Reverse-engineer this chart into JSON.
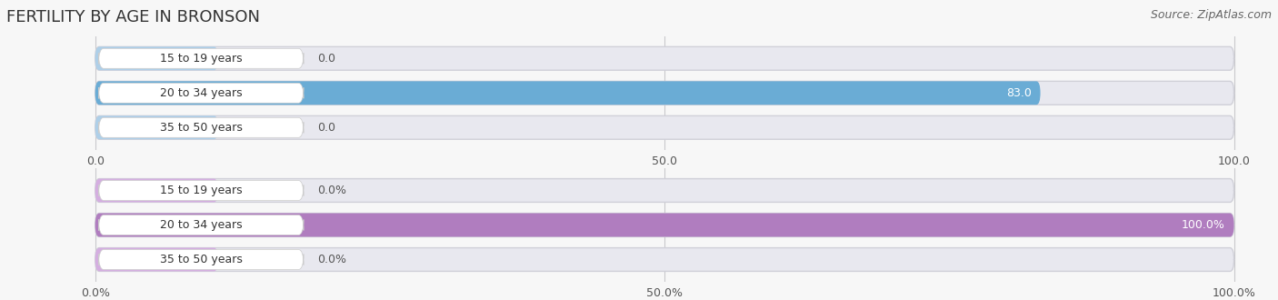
{
  "title": "FERTILITY BY AGE IN BRONSON",
  "source": "Source: ZipAtlas.com",
  "top_chart": {
    "categories": [
      "15 to 19 years",
      "20 to 34 years",
      "35 to 50 years"
    ],
    "values": [
      0.0,
      83.0,
      0.0
    ],
    "xlim": [
      0,
      100
    ],
    "xticks": [
      0.0,
      50.0,
      100.0
    ],
    "bar_color": "#6aacd5",
    "bar_color_light": "#aecfe8",
    "label_color_inside": "#ffffff",
    "label_color_outside": "#666666"
  },
  "bottom_chart": {
    "categories": [
      "15 to 19 years",
      "20 to 34 years",
      "35 to 50 years"
    ],
    "values": [
      0.0,
      100.0,
      0.0
    ],
    "xlim": [
      0,
      100
    ],
    "xticks": [
      0.0,
      50.0,
      100.0
    ],
    "bar_color": "#b07dbf",
    "bar_color_light": "#d4aee0",
    "label_color_inside": "#ffffff",
    "label_color_outside": "#666666"
  },
  "bg_color": "#f7f7f7",
  "bar_bg_color": "#e8e8ef",
  "white_label_bg": "#ffffff",
  "title_fontsize": 13,
  "source_fontsize": 9,
  "label_fontsize": 9,
  "category_fontsize": 9,
  "tick_fontsize": 9
}
